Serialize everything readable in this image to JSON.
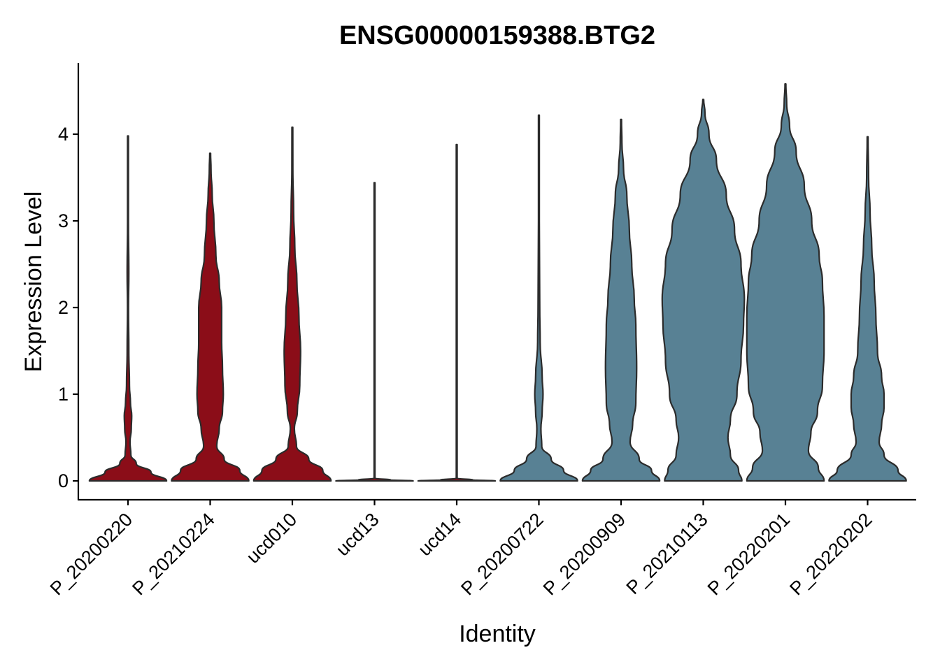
{
  "chart_data": {
    "type": "violin",
    "title": "ENSG00000159388.BTG2",
    "xlabel": "Identity",
    "ylabel": "Expression Level",
    "ylim": [
      -0.22,
      4.8
    ],
    "yticks": [
      0,
      1,
      2,
      3,
      4
    ],
    "grid": false,
    "legend": "none",
    "categories": [
      "P_20200220",
      "P_20210224",
      "ucd010",
      "ucd13",
      "ucd14",
      "P_20200722",
      "P_20200909",
      "P_20210113",
      "P_20220201",
      "P_20220202"
    ],
    "colors": {
      "red_group": "#8B0D18",
      "blue_group": "#588194",
      "outline": "#2b2b2b"
    },
    "series": [
      {
        "category": "P_20200220",
        "color": "#8B0D18",
        "max": 3.98,
        "profile": [
          [
            0,
            0.47
          ],
          [
            0.1,
            0.28
          ],
          [
            0.2,
            0.1
          ],
          [
            0.3,
            0.035
          ],
          [
            0.45,
            0.025
          ],
          [
            0.6,
            0.04
          ],
          [
            0.75,
            0.045
          ],
          [
            0.9,
            0.03
          ],
          [
            1.1,
            0.018
          ],
          [
            1.5,
            0.01
          ],
          [
            2,
            0.006
          ],
          [
            2.4,
            0.01
          ],
          [
            3,
            0.004
          ],
          [
            3.5,
            0.003
          ],
          [
            3.98,
            0.002
          ]
        ]
      },
      {
        "category": "P_20210224",
        "color": "#8B0D18",
        "max": 3.78,
        "profile": [
          [
            0,
            0.47
          ],
          [
            0.12,
            0.36
          ],
          [
            0.25,
            0.17
          ],
          [
            0.4,
            0.08
          ],
          [
            0.6,
            0.11
          ],
          [
            0.8,
            0.15
          ],
          [
            1.0,
            0.16
          ],
          [
            1.3,
            0.15
          ],
          [
            1.6,
            0.14
          ],
          [
            2.0,
            0.14
          ],
          [
            2.3,
            0.11
          ],
          [
            2.6,
            0.07
          ],
          [
            3.0,
            0.045
          ],
          [
            3.3,
            0.025
          ],
          [
            3.6,
            0.01
          ],
          [
            3.78,
            0.003
          ]
        ]
      },
      {
        "category": "ucd010",
        "color": "#8B0D18",
        "max": 4.08,
        "profile": [
          [
            0,
            0.47
          ],
          [
            0.12,
            0.37
          ],
          [
            0.25,
            0.2
          ],
          [
            0.4,
            0.05
          ],
          [
            0.6,
            0.025
          ],
          [
            0.8,
            0.06
          ],
          [
            1.1,
            0.09
          ],
          [
            1.5,
            0.1
          ],
          [
            1.9,
            0.08
          ],
          [
            2.3,
            0.055
          ],
          [
            2.7,
            0.03
          ],
          [
            3.1,
            0.015
          ],
          [
            3.6,
            0.006
          ],
          [
            4.08,
            0.002
          ]
        ]
      },
      {
        "category": "ucd13",
        "color": "#8B0D18",
        "max": 3.44,
        "profile": [
          [
            0,
            0.47
          ],
          [
            0.01,
            0.2
          ],
          [
            0.03,
            0.004
          ],
          [
            1,
            0.002
          ],
          [
            3.44,
            0.001
          ]
        ]
      },
      {
        "category": "ucd14",
        "color": "#8B0D18",
        "max": 3.88,
        "profile": [
          [
            0,
            0.47
          ],
          [
            0.01,
            0.2
          ],
          [
            0.03,
            0.004
          ],
          [
            1,
            0.002
          ],
          [
            3.88,
            0.001
          ]
        ]
      },
      {
        "category": "P_20200722",
        "color": "#588194",
        "max": 4.22,
        "profile": [
          [
            0,
            0.47
          ],
          [
            0.12,
            0.3
          ],
          [
            0.25,
            0.15
          ],
          [
            0.4,
            0.035
          ],
          [
            0.6,
            0.025
          ],
          [
            0.8,
            0.04
          ],
          [
            1.0,
            0.05
          ],
          [
            1.2,
            0.04
          ],
          [
            1.6,
            0.015
          ],
          [
            2.0,
            0.01
          ],
          [
            2.5,
            0.008
          ],
          [
            3,
            0.003
          ],
          [
            4.22,
            0.001
          ]
        ]
      },
      {
        "category": "P_20200909",
        "color": "#588194",
        "max": 4.17,
        "profile": [
          [
            0,
            0.47
          ],
          [
            0.12,
            0.37
          ],
          [
            0.25,
            0.22
          ],
          [
            0.45,
            0.11
          ],
          [
            0.65,
            0.14
          ],
          [
            0.9,
            0.18
          ],
          [
            1.3,
            0.19
          ],
          [
            1.8,
            0.18
          ],
          [
            2.1,
            0.16
          ],
          [
            2.5,
            0.13
          ],
          [
            2.9,
            0.1
          ],
          [
            3.3,
            0.07
          ],
          [
            3.6,
            0.03
          ],
          [
            3.9,
            0.01
          ],
          [
            4.17,
            0.002
          ]
        ]
      },
      {
        "category": "P_20210113",
        "color": "#588194",
        "max": 4.4,
        "profile": [
          [
            0,
            0.47
          ],
          [
            0.12,
            0.43
          ],
          [
            0.3,
            0.33
          ],
          [
            0.5,
            0.3
          ],
          [
            0.7,
            0.33
          ],
          [
            1.0,
            0.41
          ],
          [
            1.4,
            0.46
          ],
          [
            1.8,
            0.49
          ],
          [
            2.1,
            0.5
          ],
          [
            2.5,
            0.46
          ],
          [
            2.9,
            0.38
          ],
          [
            3.3,
            0.28
          ],
          [
            3.7,
            0.16
          ],
          [
            4.0,
            0.07
          ],
          [
            4.25,
            0.02
          ],
          [
            4.4,
            0.002
          ]
        ]
      },
      {
        "category": "P_20220201",
        "color": "#588194",
        "max": 4.58,
        "profile": [
          [
            0,
            0.47
          ],
          [
            0.15,
            0.4
          ],
          [
            0.35,
            0.28
          ],
          [
            0.55,
            0.31
          ],
          [
            0.8,
            0.39
          ],
          [
            1.1,
            0.45
          ],
          [
            1.5,
            0.47
          ],
          [
            1.9,
            0.47
          ],
          [
            2.3,
            0.45
          ],
          [
            2.6,
            0.41
          ],
          [
            3.0,
            0.32
          ],
          [
            3.4,
            0.23
          ],
          [
            3.8,
            0.13
          ],
          [
            4.1,
            0.05
          ],
          [
            4.35,
            0.015
          ],
          [
            4.58,
            0.002
          ]
        ]
      },
      {
        "category": "P_20220202",
        "color": "#588194",
        "max": 3.97,
        "profile": [
          [
            0,
            0.47
          ],
          [
            0.12,
            0.37
          ],
          [
            0.3,
            0.2
          ],
          [
            0.45,
            0.14
          ],
          [
            0.65,
            0.17
          ],
          [
            0.85,
            0.2
          ],
          [
            1.0,
            0.2
          ],
          [
            1.2,
            0.17
          ],
          [
            1.5,
            0.12
          ],
          [
            1.9,
            0.1
          ],
          [
            2.3,
            0.08
          ],
          [
            2.7,
            0.05
          ],
          [
            3.1,
            0.03
          ],
          [
            3.5,
            0.012
          ],
          [
            3.97,
            0.002
          ]
        ]
      }
    ]
  }
}
